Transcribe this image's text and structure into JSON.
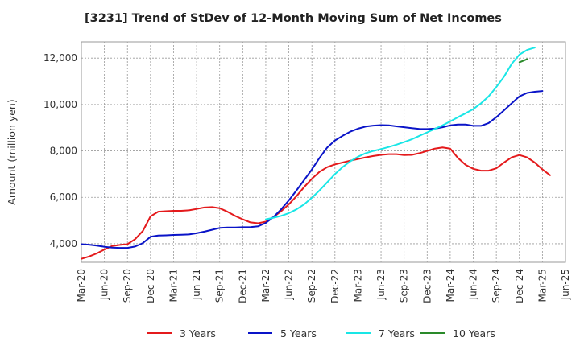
{
  "chart_data": {
    "type": "line",
    "title": "[3231]  Trend of StDev of 12-Month Moving Sum of Net Incomes",
    "xlabel": "",
    "ylabel": "Amount (million yen)",
    "ylim": [
      3200,
      12700
    ],
    "yticks": [
      4000,
      6000,
      8000,
      10000,
      12000
    ],
    "ytick_labels": [
      "4,000",
      "6,000",
      "8,000",
      "10,000",
      "12,000"
    ],
    "xlim": [
      "2020-03",
      "2025-06"
    ],
    "xtick_labels": [
      "Mar-20",
      "Jun-20",
      "Sep-20",
      "Dec-20",
      "Mar-21",
      "Jun-21",
      "Sep-21",
      "Dec-21",
      "Mar-22",
      "Jun-22",
      "Sep-22",
      "Dec-22",
      "Mar-23",
      "Jun-23",
      "Sep-23",
      "Dec-23",
      "Mar-24",
      "Jun-24",
      "Sep-24",
      "Dec-24",
      "Mar-25",
      "Jun-25"
    ],
    "grid": true,
    "legend_position": "bottom",
    "series": [
      {
        "name": "3 Years",
        "color": "#e41a1c",
        "start": "2020-03",
        "values": [
          3350,
          3450,
          3580,
          3750,
          3900,
          3950,
          3980,
          4200,
          4550,
          5180,
          5380,
          5400,
          5420,
          5420,
          5440,
          5500,
          5560,
          5580,
          5530,
          5380,
          5200,
          5050,
          4920,
          4880,
          4950,
          5150,
          5400,
          5700,
          6050,
          6450,
          6800,
          7100,
          7300,
          7420,
          7500,
          7580,
          7650,
          7720,
          7780,
          7830,
          7860,
          7860,
          7820,
          7830,
          7900,
          8000,
          8100,
          8150,
          8100,
          7700,
          7400,
          7230,
          7150,
          7150,
          7250,
          7500,
          7720,
          7820,
          7720,
          7500,
          7200,
          6950
        ]
      },
      {
        "name": "5 Years",
        "color": "#0a14c8",
        "start": "2020-03",
        "values": [
          3980,
          3960,
          3920,
          3870,
          3830,
          3820,
          3820,
          3880,
          4030,
          4300,
          4350,
          4360,
          4380,
          4390,
          4400,
          4450,
          4520,
          4600,
          4680,
          4700,
          4700,
          4710,
          4720,
          4750,
          4900,
          5150,
          5480,
          5870,
          6300,
          6750,
          7200,
          7700,
          8150,
          8450,
          8650,
          8830,
          8960,
          9050,
          9090,
          9110,
          9100,
          9060,
          9020,
          8980,
          8950,
          8940,
          8960,
          9020,
          9100,
          9140,
          9140,
          9080,
          9080,
          9200,
          9450,
          9750,
          10050,
          10350,
          10500,
          10550,
          10580
        ]
      },
      {
        "name": "7 Years",
        "color": "#19e6e6",
        "start": "2022-03",
        "values": [
          5050,
          5120,
          5200,
          5320,
          5480,
          5700,
          5980,
          6300,
          6650,
          7000,
          7300,
          7550,
          7750,
          7900,
          8000,
          8080,
          8170,
          8270,
          8380,
          8500,
          8650,
          8800,
          8950,
          9100,
          9270,
          9450,
          9620,
          9800,
          10050,
          10350,
          10750,
          11200,
          11750,
          12150,
          12350,
          12450
        ]
      },
      {
        "name": "10 Years",
        "color": "#2a8a2a",
        "start": "2024-12",
        "values": [
          11820,
          11950
        ]
      }
    ]
  }
}
